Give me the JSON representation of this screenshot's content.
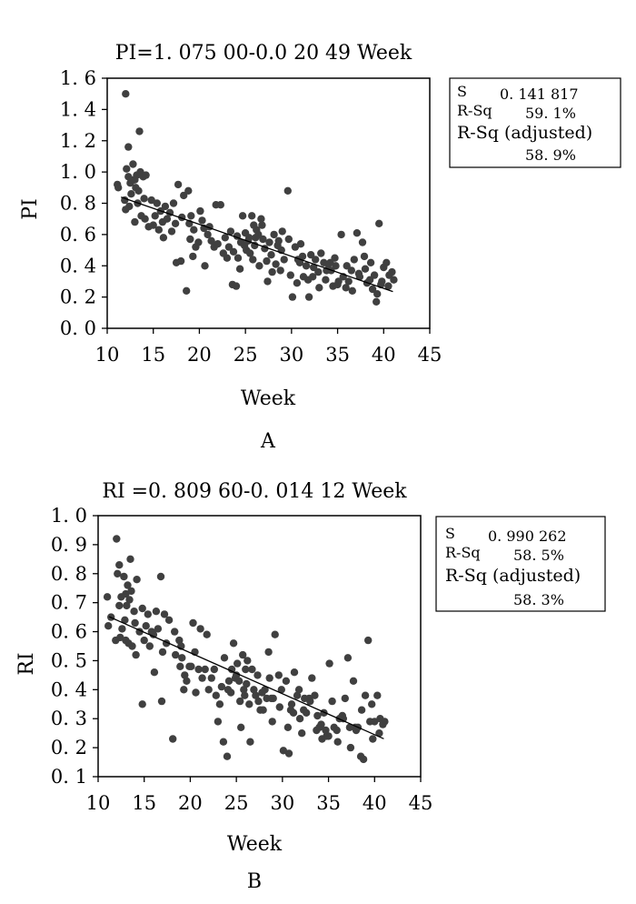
{
  "colors": {
    "point": "#404040",
    "axis": "#000000",
    "background": "#ffffff"
  },
  "chart_data": [
    {
      "type": "scatter",
      "panel_label": "A",
      "title": "PI=1. 075 00-0.0 20 49  Week",
      "xlabel": "Week",
      "ylabel": "PI",
      "xlim": [
        10,
        45
      ],
      "ylim": [
        0.0,
        1.6
      ],
      "xticks": [
        "10",
        "15",
        "20",
        "25",
        "30",
        "35",
        "40",
        "45"
      ],
      "yticks": [
        "0. 0",
        "0. 2",
        "0. 4",
        "0. 6",
        "0. 8",
        "1. 0",
        "1. 2",
        "1. 4",
        "1. 6"
      ],
      "grid": false,
      "fit_line": {
        "intercept": 1.075,
        "slope": -0.02049,
        "x_range": [
          11.5,
          41
        ]
      },
      "stats_box": [
        {
          "label": "S",
          "value": "0. 141 817"
        },
        {
          "label": "R-Sq",
          "value": "59. 1%"
        },
        {
          "label": "R-Sq (adjusted)",
          "value": "58. 9%"
        }
      ],
      "points": [
        [
          12.0,
          1.5
        ],
        [
          12.3,
          1.16
        ],
        [
          13.5,
          1.26
        ],
        [
          12.1,
          1.02
        ],
        [
          12.8,
          1.05
        ],
        [
          13.2,
          0.98
        ],
        [
          13.0,
          0.95
        ],
        [
          12.5,
          0.93
        ],
        [
          11.1,
          0.92
        ],
        [
          11.2,
          0.9
        ],
        [
          12.3,
          0.97
        ],
        [
          13.6,
          1.0
        ],
        [
          13.1,
          0.9
        ],
        [
          13.9,
          0.97
        ],
        [
          14.2,
          0.98
        ],
        [
          12.6,
          0.86
        ],
        [
          11.9,
          0.82
        ],
        [
          12.4,
          0.78
        ],
        [
          12.0,
          0.76
        ],
        [
          13.3,
          0.8
        ],
        [
          13.7,
          0.72
        ],
        [
          14.1,
          0.7
        ],
        [
          13.0,
          0.68
        ],
        [
          14.8,
          0.82
        ],
        [
          15.4,
          0.8
        ],
        [
          15.0,
          0.66
        ],
        [
          15.6,
          0.63
        ],
        [
          16.0,
          0.68
        ],
        [
          16.3,
          0.78
        ],
        [
          16.8,
          0.74
        ],
        [
          17.2,
          0.8
        ],
        [
          17.7,
          0.92
        ],
        [
          18.3,
          0.85
        ],
        [
          18.8,
          0.88
        ],
        [
          19.1,
          0.72
        ],
        [
          18.9,
          0.67
        ],
        [
          19.4,
          0.63
        ],
        [
          19.9,
          0.55
        ],
        [
          20.3,
          0.69
        ],
        [
          20.9,
          0.6
        ],
        [
          21.3,
          0.56
        ],
        [
          21.8,
          0.79
        ],
        [
          22.3,
          0.79
        ],
        [
          18.0,
          0.43
        ],
        [
          18.6,
          0.24
        ],
        [
          17.5,
          0.42
        ],
        [
          19.3,
          0.46
        ],
        [
          20.6,
          0.4
        ],
        [
          21.1,
          0.65
        ],
        [
          22.0,
          0.54
        ],
        [
          22.8,
          0.58
        ],
        [
          23.2,
          0.52
        ],
        [
          23.7,
          0.49
        ],
        [
          23.6,
          0.28
        ],
        [
          24.1,
          0.59
        ],
        [
          24.2,
          0.45
        ],
        [
          24.5,
          0.55
        ],
        [
          24.7,
          0.72
        ],
        [
          25.0,
          0.61
        ],
        [
          25.1,
          0.5
        ],
        [
          25.4,
          0.58
        ],
        [
          25.7,
          0.72
        ],
        [
          25.8,
          0.44
        ],
        [
          26.0,
          0.53
        ],
        [
          26.2,
          0.63
        ],
        [
          26.4,
          0.6
        ],
        [
          26.7,
          0.7
        ],
        [
          26.9,
          0.57
        ],
        [
          27.1,
          0.51
        ],
        [
          27.3,
          0.43
        ],
        [
          27.6,
          0.55
        ],
        [
          27.8,
          0.47
        ],
        [
          28.1,
          0.6
        ],
        [
          28.3,
          0.41
        ],
        [
          28.6,
          0.56
        ],
        [
          28.9,
          0.5
        ],
        [
          29.2,
          0.44
        ],
        [
          29.6,
          0.88
        ],
        [
          29.7,
          0.57
        ],
        [
          29.9,
          0.34
        ],
        [
          30.1,
          0.2
        ],
        [
          30.4,
          0.52
        ],
        [
          30.7,
          0.44
        ],
        [
          31.0,
          0.54
        ],
        [
          31.3,
          0.33
        ],
        [
          31.6,
          0.4
        ],
        [
          31.9,
          0.2
        ],
        [
          32.1,
          0.47
        ],
        [
          32.4,
          0.39
        ],
        [
          32.6,
          0.44
        ],
        [
          32.9,
          0.36
        ],
        [
          33.2,
          0.48
        ],
        [
          33.5,
          0.42
        ],
        [
          33.7,
          0.31
        ],
        [
          34.0,
          0.41
        ],
        [
          34.3,
          0.37
        ],
        [
          34.5,
          0.27
        ],
        [
          34.8,
          0.4
        ],
        [
          35.1,
          0.3
        ],
        [
          35.4,
          0.6
        ],
        [
          35.6,
          0.33
        ],
        [
          35.9,
          0.26
        ],
        [
          36.2,
          0.3
        ],
        [
          36.5,
          0.37
        ],
        [
          36.8,
          0.44
        ],
        [
          37.1,
          0.61
        ],
        [
          37.4,
          0.33
        ],
        [
          37.7,
          0.55
        ],
        [
          38.0,
          0.38
        ],
        [
          38.2,
          0.29
        ],
        [
          38.5,
          0.31
        ],
        [
          38.8,
          0.25
        ],
        [
          39.0,
          0.34
        ],
        [
          39.3,
          0.22
        ],
        [
          39.5,
          0.67
        ],
        [
          39.7,
          0.28
        ],
        [
          40.0,
          0.39
        ],
        [
          40.3,
          0.42
        ],
        [
          40.6,
          0.34
        ],
        [
          40.9,
          0.36
        ],
        [
          41.1,
          0.31
        ],
        [
          39.2,
          0.17
        ],
        [
          24.0,
          0.27
        ],
        [
          26.5,
          0.4
        ],
        [
          27.9,
          0.36
        ],
        [
          23.0,
          0.45
        ],
        [
          25.5,
          0.48
        ],
        [
          26.8,
          0.66
        ],
        [
          28.5,
          0.53
        ],
        [
          31.8,
          0.31
        ],
        [
          33.0,
          0.26
        ],
        [
          34.7,
          0.45
        ],
        [
          36.0,
          0.4
        ],
        [
          37.9,
          0.46
        ],
        [
          15.2,
          0.72
        ],
        [
          16.5,
          0.7
        ],
        [
          17.0,
          0.62
        ],
        [
          18.1,
          0.71
        ],
        [
          19.6,
          0.52
        ],
        [
          20.1,
          0.75
        ],
        [
          21.6,
          0.52
        ],
        [
          14.5,
          0.65
        ],
        [
          16.1,
          0.58
        ],
        [
          22.6,
          0.48
        ],
        [
          24.4,
          0.38
        ],
        [
          25.3,
          0.56
        ],
        [
          29.0,
          0.62
        ],
        [
          30.6,
          0.29
        ],
        [
          32.3,
          0.33
        ],
        [
          35.0,
          0.28
        ],
        [
          38.6,
          0.42
        ],
        [
          13.4,
          0.88
        ],
        [
          12.9,
          0.95
        ],
        [
          14.0,
          0.83
        ],
        [
          15.8,
          0.75
        ],
        [
          17.4,
          0.67
        ],
        [
          19.0,
          0.57
        ],
        [
          20.5,
          0.64
        ],
        [
          26.1,
          0.58
        ],
        [
          27.4,
          0.3
        ],
        [
          28.8,
          0.37
        ],
        [
          31.2,
          0.46
        ],
        [
          33.8,
          0.37
        ],
        [
          36.6,
          0.24
        ],
        [
          39.8,
          0.3
        ],
        [
          40.5,
          0.27
        ],
        [
          24.9,
          0.53
        ],
        [
          25.9,
          0.66
        ],
        [
          23.4,
          0.62
        ],
        [
          30.9,
          0.42
        ],
        [
          34.2,
          0.42
        ],
        [
          37.3,
          0.35
        ]
      ]
    },
    {
      "type": "scatter",
      "panel_label": "B",
      "title": "RI =0. 809 60-0. 014 12  Week",
      "xlabel": "Week",
      "ylabel": "RI",
      "xlim": [
        10,
        45
      ],
      "ylim": [
        0.1,
        1.0
      ],
      "xticks": [
        "10",
        "15",
        "20",
        "25",
        "30",
        "35",
        "40",
        "45"
      ],
      "yticks": [
        "0. 1",
        "0. 2",
        "0. 3",
        "0. 4",
        "0. 5",
        "0. 6",
        "0. 7",
        "0. 8",
        "0. 9",
        "1. 0"
      ],
      "grid": false,
      "fit_line": {
        "intercept": 0.8096,
        "slope": -0.01412,
        "x_range": [
          11.2,
          41
        ]
      },
      "stats_box": [
        {
          "label": "S",
          "value": "0. 990 262"
        },
        {
          "label": "R-Sq",
          "value": "58. 5%"
        },
        {
          "label": "R-Sq (adjusted)",
          "value": "58. 3%"
        }
      ],
      "points": [
        [
          12.0,
          0.92
        ],
        [
          12.3,
          0.83
        ],
        [
          13.5,
          0.85
        ],
        [
          12.1,
          0.8
        ],
        [
          12.8,
          0.79
        ],
        [
          13.2,
          0.76
        ],
        [
          13.0,
          0.73
        ],
        [
          12.5,
          0.72
        ],
        [
          11.0,
          0.72
        ],
        [
          11.4,
          0.65
        ],
        [
          12.3,
          0.69
        ],
        [
          13.6,
          0.74
        ],
        [
          13.1,
          0.69
        ],
        [
          13.9,
          0.67
        ],
        [
          14.2,
          0.78
        ],
        [
          12.6,
          0.61
        ],
        [
          11.1,
          0.62
        ],
        [
          12.4,
          0.58
        ],
        [
          11.9,
          0.57
        ],
        [
          13.3,
          0.56
        ],
        [
          13.7,
          0.55
        ],
        [
          14.1,
          0.52
        ],
        [
          13.0,
          0.57
        ],
        [
          14.8,
          0.68
        ],
        [
          15.4,
          0.66
        ],
        [
          15.0,
          0.57
        ],
        [
          15.6,
          0.55
        ],
        [
          16.0,
          0.59
        ],
        [
          16.3,
          0.67
        ],
        [
          16.8,
          0.79
        ],
        [
          17.2,
          0.66
        ],
        [
          17.7,
          0.64
        ],
        [
          18.3,
          0.6
        ],
        [
          18.8,
          0.57
        ],
        [
          19.1,
          0.51
        ],
        [
          18.9,
          0.48
        ],
        [
          19.4,
          0.45
        ],
        [
          19.9,
          0.48
        ],
        [
          20.3,
          0.63
        ],
        [
          20.9,
          0.47
        ],
        [
          21.3,
          0.44
        ],
        [
          21.8,
          0.59
        ],
        [
          22.3,
          0.44
        ],
        [
          14.8,
          0.35
        ],
        [
          18.1,
          0.23
        ],
        [
          16.9,
          0.36
        ],
        [
          19.3,
          0.4
        ],
        [
          20.6,
          0.39
        ],
        [
          21.1,
          0.61
        ],
        [
          22.0,
          0.4
        ],
        [
          22.8,
          0.38
        ],
        [
          23.2,
          0.35
        ],
        [
          23.7,
          0.51
        ],
        [
          23.6,
          0.22
        ],
        [
          24.1,
          0.4
        ],
        [
          24.2,
          0.43
        ],
        [
          24.5,
          0.47
        ],
        [
          24.7,
          0.56
        ],
        [
          25.0,
          0.45
        ],
        [
          25.1,
          0.49
        ],
        [
          25.4,
          0.36
        ],
        [
          25.7,
          0.52
        ],
        [
          25.8,
          0.4
        ],
        [
          26.0,
          0.47
        ],
        [
          26.2,
          0.5
        ],
        [
          26.4,
          0.35
        ],
        [
          26.7,
          0.47
        ],
        [
          26.9,
          0.4
        ],
        [
          27.1,
          0.38
        ],
        [
          27.3,
          0.45
        ],
        [
          27.6,
          0.33
        ],
        [
          27.8,
          0.39
        ],
        [
          28.1,
          0.4
        ],
        [
          28.3,
          0.37
        ],
        [
          28.6,
          0.44
        ],
        [
          28.9,
          0.29
        ],
        [
          29.2,
          0.59
        ],
        [
          29.6,
          0.45
        ],
        [
          29.7,
          0.34
        ],
        [
          29.9,
          0.4
        ],
        [
          30.1,
          0.19
        ],
        [
          30.4,
          0.43
        ],
        [
          30.7,
          0.18
        ],
        [
          31.0,
          0.35
        ],
        [
          31.3,
          0.46
        ],
        [
          31.6,
          0.38
        ],
        [
          31.9,
          0.3
        ],
        [
          32.1,
          0.25
        ],
        [
          32.4,
          0.37
        ],
        [
          32.6,
          0.32
        ],
        [
          32.9,
          0.37
        ],
        [
          33.2,
          0.44
        ],
        [
          33.5,
          0.38
        ],
        [
          33.7,
          0.26
        ],
        [
          34.0,
          0.27
        ],
        [
          34.3,
          0.23
        ],
        [
          34.5,
          0.32
        ],
        [
          34.8,
          0.24
        ],
        [
          35.1,
          0.49
        ],
        [
          35.4,
          0.36
        ],
        [
          35.6,
          0.27
        ],
        [
          35.9,
          0.26
        ],
        [
          36.2,
          0.3
        ],
        [
          36.5,
          0.31
        ],
        [
          36.8,
          0.37
        ],
        [
          37.1,
          0.51
        ],
        [
          37.4,
          0.2
        ],
        [
          37.7,
          0.43
        ],
        [
          38.0,
          0.26
        ],
        [
          38.2,
          0.27
        ],
        [
          38.5,
          0.17
        ],
        [
          38.8,
          0.16
        ],
        [
          39.0,
          0.38
        ],
        [
          39.3,
          0.57
        ],
        [
          39.5,
          0.29
        ],
        [
          39.7,
          0.35
        ],
        [
          40.0,
          0.29
        ],
        [
          40.3,
          0.38
        ],
        [
          40.6,
          0.3
        ],
        [
          40.9,
          0.28
        ],
        [
          41.1,
          0.29
        ],
        [
          24.0,
          0.17
        ],
        [
          23.0,
          0.29
        ],
        [
          25.5,
          0.27
        ],
        [
          26.5,
          0.22
        ],
        [
          27.9,
          0.33
        ],
        [
          29.0,
          0.37
        ],
        [
          31.8,
          0.4
        ],
        [
          33.0,
          0.36
        ],
        [
          34.7,
          0.26
        ],
        [
          36.0,
          0.22
        ],
        [
          37.9,
          0.27
        ],
        [
          15.2,
          0.62
        ],
        [
          16.5,
          0.61
        ],
        [
          17.0,
          0.53
        ],
        [
          18.4,
          0.52
        ],
        [
          19.6,
          0.43
        ],
        [
          20.1,
          0.48
        ],
        [
          21.6,
          0.47
        ],
        [
          14.5,
          0.6
        ],
        [
          16.1,
          0.46
        ],
        [
          22.6,
          0.47
        ],
        [
          24.4,
          0.39
        ],
        [
          25.3,
          0.43
        ],
        [
          28.5,
          0.53
        ],
        [
          30.6,
          0.27
        ],
        [
          32.3,
          0.33
        ],
        [
          35.0,
          0.24
        ],
        [
          38.6,
          0.33
        ],
        [
          13.4,
          0.71
        ],
        [
          12.9,
          0.64
        ],
        [
          14.0,
          0.63
        ],
        [
          15.8,
          0.6
        ],
        [
          17.4,
          0.56
        ],
        [
          19.0,
          0.55
        ],
        [
          20.5,
          0.53
        ],
        [
          26.1,
          0.42
        ],
        [
          27.4,
          0.36
        ],
        [
          28.8,
          0.37
        ],
        [
          31.2,
          0.32
        ],
        [
          33.8,
          0.31
        ],
        [
          36.6,
          0.3
        ],
        [
          39.8,
          0.23
        ],
        [
          40.5,
          0.25
        ],
        [
          24.9,
          0.44
        ],
        [
          25.9,
          0.38
        ],
        [
          23.4,
          0.41
        ],
        [
          30.9,
          0.33
        ],
        [
          34.2,
          0.28
        ],
        [
          37.3,
          0.27
        ]
      ]
    }
  ]
}
